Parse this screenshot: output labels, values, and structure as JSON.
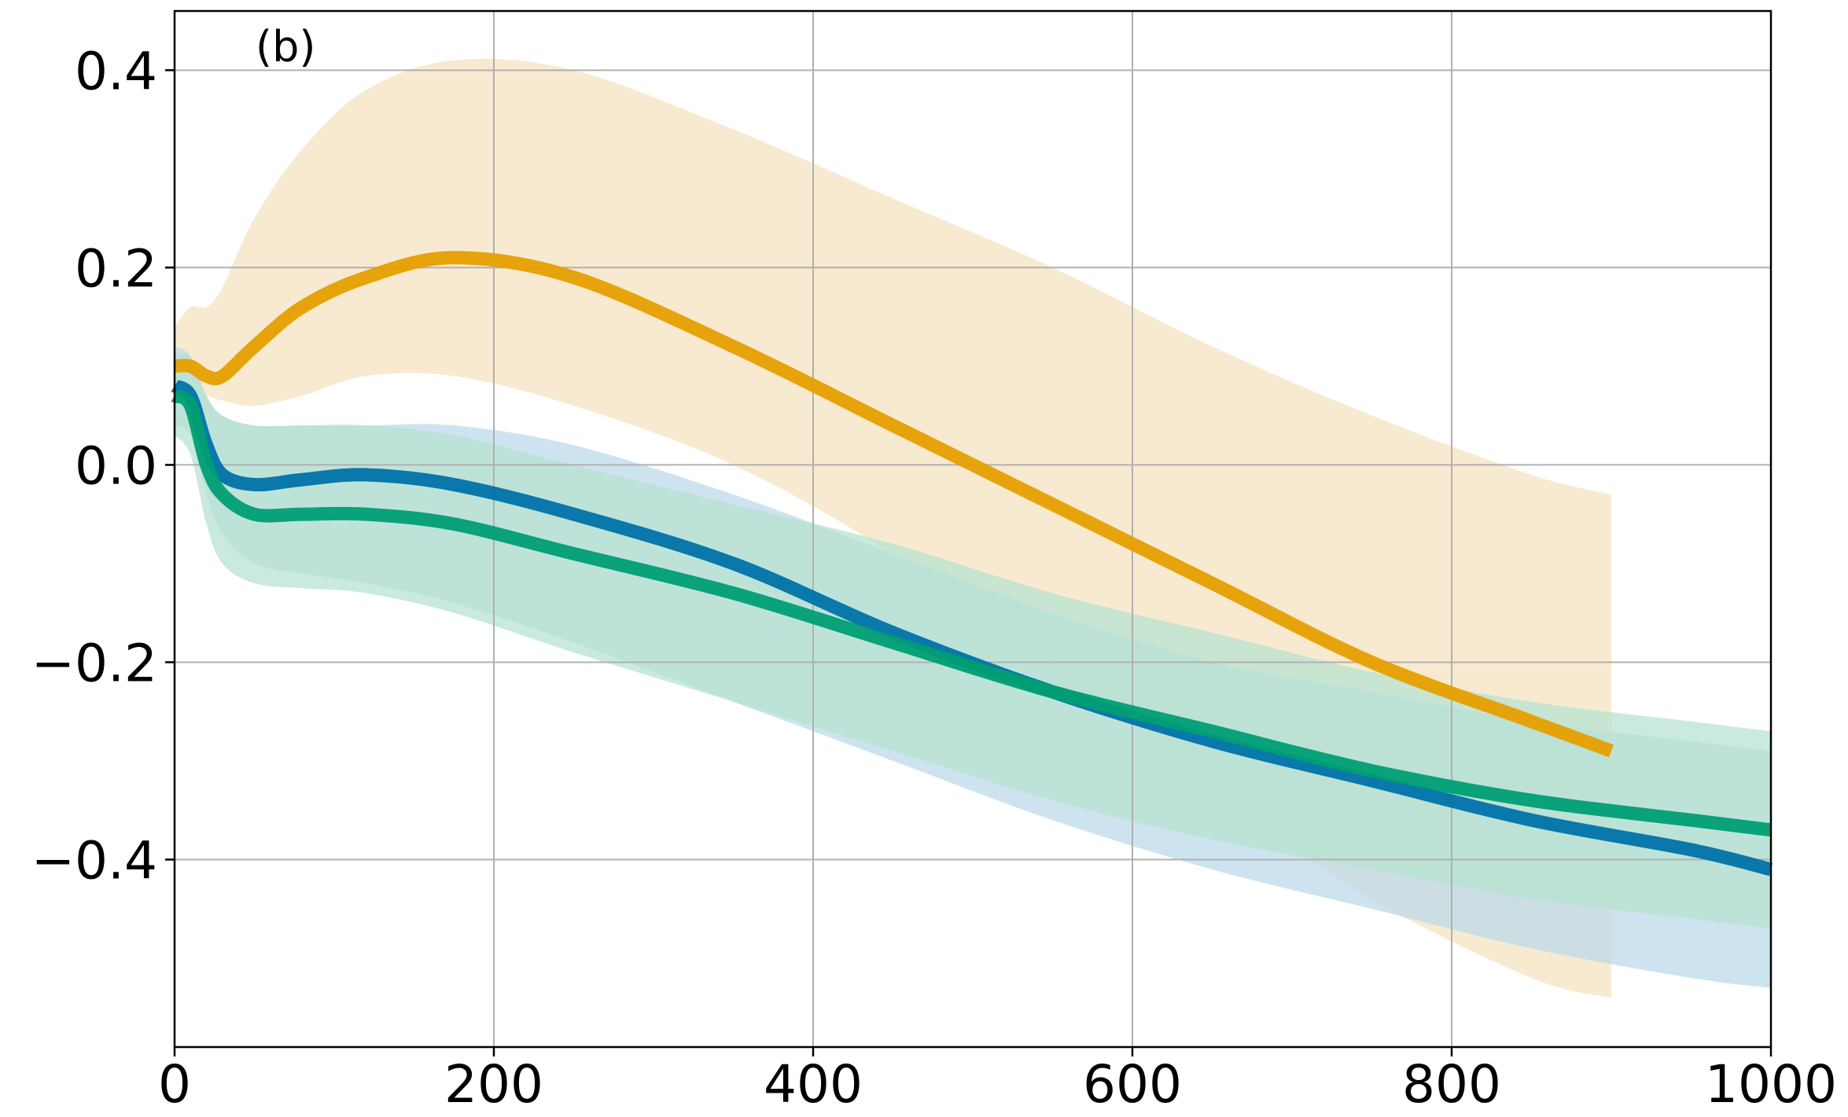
{
  "chart_data": {
    "type": "line",
    "title": "",
    "panel_label": "(b)",
    "xlabel": "",
    "ylabel": "",
    "xlim": [
      0,
      1000
    ],
    "ylim": [
      -0.59,
      0.46
    ],
    "xticks": [
      0,
      200,
      400,
      600,
      800,
      1000
    ],
    "xtick_labels": [
      "0",
      "200",
      "400",
      "600",
      "800",
      "1000"
    ],
    "yticks": [
      0.4,
      0.2,
      0.0,
      -0.2,
      -0.4
    ],
    "ytick_labels": [
      "0.4",
      "0.2",
      "0.0",
      "−0.2",
      "−0.4"
    ],
    "grid": true,
    "legend": "none",
    "series": [
      {
        "color": "#e69f00",
        "band_color": "#f5e3c0",
        "x": [
          0,
          10,
          20,
          30,
          50,
          80,
          120,
          175,
          250,
          350,
          450,
          550,
          650,
          750,
          850,
          900
        ],
        "y": [
          0.1,
          0.1,
          0.09,
          0.09,
          0.12,
          0.16,
          0.19,
          0.21,
          0.19,
          0.12,
          0.04,
          -0.04,
          -0.12,
          -0.2,
          -0.26,
          -0.29
        ],
        "lower": [
          0.06,
          0.07,
          0.07,
          0.065,
          0.06,
          0.07,
          0.09,
          0.09,
          0.06,
          0.0,
          -0.09,
          -0.2,
          -0.33,
          -0.44,
          -0.52,
          -0.54
        ],
        "upper": [
          0.14,
          0.16,
          0.16,
          0.18,
          0.25,
          0.32,
          0.38,
          0.41,
          0.4,
          0.34,
          0.27,
          0.2,
          0.12,
          0.05,
          -0.01,
          -0.03
        ]
      },
      {
        "color": "#0072a8",
        "band_color": "#bdd9eb",
        "x": [
          0,
          10,
          20,
          30,
          50,
          80,
          120,
          175,
          250,
          350,
          450,
          550,
          650,
          750,
          850,
          950,
          1000
        ],
        "y": [
          0.08,
          0.07,
          0.02,
          -0.01,
          -0.02,
          -0.015,
          -0.01,
          -0.02,
          -0.05,
          -0.1,
          -0.17,
          -0.23,
          -0.28,
          -0.32,
          -0.36,
          -0.39,
          -0.41
        ],
        "lower": [
          0.04,
          0.03,
          -0.03,
          -0.07,
          -0.1,
          -0.11,
          -0.12,
          -0.14,
          -0.18,
          -0.24,
          -0.3,
          -0.36,
          -0.41,
          -0.45,
          -0.49,
          -0.52,
          -0.53
        ],
        "upper": [
          0.12,
          0.11,
          0.07,
          0.05,
          0.04,
          0.04,
          0.04,
          0.04,
          0.02,
          -0.03,
          -0.09,
          -0.15,
          -0.2,
          -0.23,
          -0.26,
          -0.28,
          -0.29
        ]
      },
      {
        "color": "#009e73",
        "band_color": "#b7e3d2",
        "x": [
          0,
          10,
          20,
          30,
          50,
          80,
          120,
          175,
          250,
          350,
          450,
          550,
          650,
          750,
          850,
          950,
          1000
        ],
        "y": [
          0.07,
          0.06,
          0.0,
          -0.03,
          -0.05,
          -0.05,
          -0.05,
          -0.06,
          -0.09,
          -0.13,
          -0.18,
          -0.23,
          -0.27,
          -0.31,
          -0.34,
          -0.36,
          -0.37
        ],
        "lower": [
          0.03,
          0.01,
          -0.06,
          -0.1,
          -0.12,
          -0.125,
          -0.13,
          -0.15,
          -0.19,
          -0.24,
          -0.29,
          -0.34,
          -0.38,
          -0.41,
          -0.44,
          -0.46,
          -0.47
        ],
        "upper": [
          0.11,
          0.11,
          0.07,
          0.05,
          0.04,
          0.04,
          0.04,
          0.03,
          0.0,
          -0.04,
          -0.08,
          -0.13,
          -0.17,
          -0.21,
          -0.24,
          -0.26,
          -0.27
        ]
      }
    ]
  }
}
